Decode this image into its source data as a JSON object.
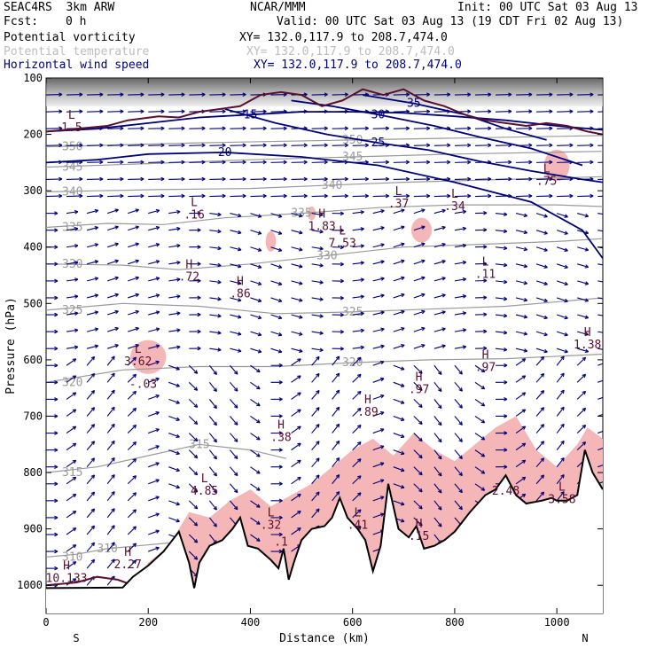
{
  "header": {
    "model": "SEAC4RS  3km ARW",
    "center": "NCAR/MMM",
    "init": "Init: 00 UTC Sat 03 Aug 13",
    "fcst_label": "Fcst:",
    "fcst_value": "0 h",
    "valid": "Valid: 00 UTC Sat 03 Aug 13 (19 CDT Fri 02 Aug 13)"
  },
  "fields": [
    {
      "name": "Potential vorticity",
      "xy": "XY= 132.0,117.9 to 208.7,474.0",
      "color": "#000000"
    },
    {
      "name": "Potential temperature",
      "xy": "XY= 132.0,117.9 to 208.7,474.0",
      "color": "#bdbdbd"
    },
    {
      "name": "Horizontal wind speed",
      "xy": "XY= 132.0,117.9 to 208.7,474.0",
      "color": "#00007a"
    }
  ],
  "colors": {
    "pv_fill": "#f4b6b6",
    "theta": "#9a9a9a",
    "wind": "#00007a",
    "pv_contour": "#5a1030",
    "terrain": "#000000"
  },
  "chart_data": {
    "type": "cross-section",
    "xlabel": "Distance (km)",
    "ylabel": "Pressure (hPa)",
    "xlim": [
      0,
      1090
    ],
    "ylim": [
      1050,
      100
    ],
    "x_ticks": [
      "0",
      "200",
      "400",
      "600",
      "800",
      "1000"
    ],
    "y_ticks": [
      "100",
      "200",
      "300",
      "400",
      "500",
      "600",
      "700",
      "800",
      "900",
      "1000"
    ],
    "x_end_labels": {
      "left": "S",
      "right": "N"
    },
    "terrain": [
      [
        0,
        1005
      ],
      [
        150,
        1004
      ],
      [
        170,
        985
      ],
      [
        200,
        965
      ],
      [
        230,
        940
      ],
      [
        260,
        905
      ],
      [
        280,
        960
      ],
      [
        290,
        1005
      ],
      [
        300,
        960
      ],
      [
        320,
        930
      ],
      [
        345,
        920
      ],
      [
        365,
        900
      ],
      [
        380,
        880
      ],
      [
        395,
        930
      ],
      [
        415,
        935
      ],
      [
        440,
        955
      ],
      [
        455,
        970
      ],
      [
        465,
        935
      ],
      [
        475,
        990
      ],
      [
        485,
        960
      ],
      [
        500,
        920
      ],
      [
        520,
        900
      ],
      [
        545,
        895
      ],
      [
        560,
        880
      ],
      [
        575,
        845
      ],
      [
        590,
        880
      ],
      [
        610,
        900
      ],
      [
        625,
        920
      ],
      [
        640,
        975
      ],
      [
        655,
        930
      ],
      [
        670,
        820
      ],
      [
        690,
        900
      ],
      [
        710,
        915
      ],
      [
        725,
        895
      ],
      [
        740,
        935
      ],
      [
        760,
        930
      ],
      [
        780,
        920
      ],
      [
        800,
        905
      ],
      [
        830,
        870
      ],
      [
        860,
        840
      ],
      [
        880,
        830
      ],
      [
        900,
        805
      ],
      [
        920,
        840
      ],
      [
        940,
        855
      ],
      [
        970,
        850
      ],
      [
        990,
        845
      ],
      [
        1000,
        850
      ],
      [
        1020,
        850
      ],
      [
        1040,
        840
      ],
      [
        1055,
        760
      ],
      [
        1070,
        800
      ],
      [
        1090,
        830
      ]
    ],
    "theta_contours": [
      {
        "value": "310",
        "points": [
          [
            0,
            950
          ],
          [
            60,
            945
          ],
          [
            120,
            935
          ],
          [
            180,
            930
          ],
          [
            240,
            925
          ]
        ]
      },
      {
        "value": "315",
        "points": [
          [
            0,
            800
          ],
          [
            100,
            790
          ],
          [
            200,
            770
          ],
          [
            300,
            750
          ],
          [
            400,
            760
          ],
          [
            470,
            775
          ]
        ]
      },
      {
        "value": "320",
        "points": [
          [
            0,
            640
          ],
          [
            150,
            618
          ],
          [
            300,
            612
          ],
          [
            450,
            612
          ],
          [
            600,
            605
          ],
          [
            750,
            600
          ],
          [
            900,
            598
          ],
          [
            1090,
            590
          ]
        ]
      },
      {
        "value": "325",
        "points": [
          [
            0,
            512
          ],
          [
            150,
            500
          ],
          [
            300,
            505
          ],
          [
            450,
            518
          ],
          [
            600,
            515
          ],
          [
            750,
            510
          ],
          [
            900,
            505
          ],
          [
            1090,
            490
          ]
        ]
      },
      {
        "value": "330",
        "points": [
          [
            0,
            430
          ],
          [
            150,
            432
          ],
          [
            260,
            440
          ],
          [
            400,
            430
          ],
          [
            550,
            415
          ],
          [
            700,
            400
          ],
          [
            850,
            395
          ],
          [
            1000,
            390
          ],
          [
            1090,
            385
          ]
        ]
      },
      {
        "value": "335",
        "points": [
          [
            0,
            365
          ],
          [
            120,
            358
          ],
          [
            230,
            360
          ],
          [
            350,
            348
          ],
          [
            500,
            340
          ],
          [
            650,
            330
          ],
          [
            800,
            325
          ],
          [
            1000,
            325
          ],
          [
            1090,
            328
          ]
        ]
      },
      {
        "value": "340",
        "points": [
          [
            0,
            302
          ],
          [
            100,
            300
          ],
          [
            220,
            298
          ],
          [
            400,
            296
          ],
          [
            560,
            290
          ],
          [
            700,
            285
          ],
          [
            900,
            280
          ],
          [
            1090,
            275
          ]
        ]
      },
      {
        "value": "345",
        "points": [
          [
            0,
            258
          ],
          [
            200,
            252
          ],
          [
            400,
            245
          ],
          [
            600,
            240
          ],
          [
            800,
            235
          ],
          [
            1090,
            230
          ]
        ]
      },
      {
        "value": "350",
        "points": [
          [
            0,
            222
          ],
          [
            300,
            215
          ],
          [
            600,
            210
          ],
          [
            900,
            205
          ],
          [
            1090,
            202
          ]
        ]
      }
    ],
    "wind_speed_contours": [
      {
        "value": "15",
        "points": [
          [
            0,
            195
          ],
          [
            100,
            190
          ],
          [
            200,
            180
          ],
          [
            300,
            170
          ],
          [
            400,
            165
          ],
          [
            500,
            160
          ],
          [
            600,
            160
          ],
          [
            700,
            162
          ],
          [
            800,
            168
          ],
          [
            900,
            175
          ],
          [
            1000,
            185
          ],
          [
            1090,
            192
          ]
        ]
      },
      {
        "value": "20",
        "points": [
          [
            0,
            250
          ],
          [
            100,
            245
          ],
          [
            200,
            235
          ],
          [
            350,
            232
          ],
          [
            500,
            240
          ],
          [
            650,
            255
          ],
          [
            800,
            285
          ],
          [
            950,
            320
          ],
          [
            1050,
            370
          ],
          [
            1090,
            420
          ]
        ]
      },
      {
        "value": "25",
        "points": [
          [
            350,
            155
          ],
          [
            450,
            180
          ],
          [
            550,
            200
          ],
          [
            650,
            215
          ],
          [
            750,
            228
          ],
          [
            850,
            248
          ],
          [
            950,
            265
          ],
          [
            1050,
            280
          ],
          [
            1090,
            285
          ]
        ]
      },
      {
        "value": "30",
        "points": [
          [
            480,
            140
          ],
          [
            560,
            150
          ],
          [
            650,
            165
          ],
          [
            760,
            185
          ],
          [
            850,
            205
          ],
          [
            950,
            225
          ],
          [
            1050,
            255
          ]
        ]
      },
      {
        "value": "35",
        "points": [
          [
            620,
            130
          ],
          [
            720,
            145
          ],
          [
            820,
            165
          ],
          [
            900,
            190
          ],
          [
            980,
            210
          ]
        ]
      }
    ],
    "pv_blobs": [
      {
        "cx": 200,
        "cy": 595,
        "rx": 35,
        "ry": 30
      },
      {
        "cx": 1000,
        "cy": 255,
        "rx": 25,
        "ry": 28
      },
      {
        "cx": 735,
        "cy": 370,
        "rx": 20,
        "ry": 22
      },
      {
        "cx": 440,
        "cy": 390,
        "rx": 10,
        "ry": 18
      },
      {
        "cx": 520,
        "cy": 340,
        "rx": 8,
        "ry": 12
      }
    ],
    "pv_boundary_layer": [
      [
        170,
        1000
      ],
      [
        200,
        960
      ],
      [
        240,
        930
      ],
      [
        280,
        870
      ],
      [
        320,
        880
      ],
      [
        360,
        850
      ],
      [
        400,
        830
      ],
      [
        440,
        860
      ],
      [
        480,
        840
      ],
      [
        520,
        820
      ],
      [
        560,
        790
      ],
      [
        600,
        760
      ],
      [
        640,
        740
      ],
      [
        680,
        770
      ],
      [
        720,
        730
      ],
      [
        760,
        760
      ],
      [
        800,
        780
      ],
      [
        840,
        750
      ],
      [
        880,
        720
      ],
      [
        920,
        700
      ],
      [
        960,
        760
      ],
      [
        1000,
        790
      ],
      [
        1040,
        750
      ],
      [
        1060,
        720
      ],
      [
        1090,
        740
      ]
    ],
    "pv_tropopause": [
      [
        0,
        195
      ],
      [
        60,
        190
      ],
      [
        120,
        185
      ],
      [
        160,
        175
      ],
      [
        220,
        168
      ],
      [
        260,
        170
      ],
      [
        300,
        160
      ],
      [
        340,
        155
      ],
      [
        380,
        150
      ],
      [
        420,
        130
      ],
      [
        460,
        125
      ],
      [
        500,
        130
      ],
      [
        540,
        150
      ],
      [
        580,
        140
      ],
      [
        620,
        120
      ],
      [
        660,
        130
      ],
      [
        700,
        120
      ],
      [
        740,
        140
      ],
      [
        780,
        150
      ],
      [
        820,
        165
      ],
      [
        860,
        175
      ],
      [
        900,
        180
      ],
      [
        940,
        185
      ],
      [
        980,
        180
      ],
      [
        1020,
        185
      ],
      [
        1060,
        195
      ],
      [
        1090,
        200
      ]
    ],
    "pv_surface": [
      [
        0,
        1000
      ],
      [
        60,
        995
      ],
      [
        100,
        985
      ],
      [
        140,
        990
      ],
      [
        170,
        1000
      ]
    ],
    "highs_lows": [
      {
        "letter": "L",
        "label": "1.5",
        "x": 50,
        "y": 185
      },
      {
        "letter": "L",
        "label": ".16",
        "x": 290,
        "y": 340
      },
      {
        "letter": "H",
        "label": "1.83",
        "x": 540,
        "y": 360
      },
      {
        "letter": "L",
        "label": "7.53",
        "x": 580,
        "y": 390
      },
      {
        "letter": "H",
        "label": ".72",
        "x": 280,
        "y": 450
      },
      {
        "letter": "H",
        "label": ".86",
        "x": 380,
        "y": 480
      },
      {
        "letter": "L",
        "label": ".37",
        "x": 690,
        "y": 320
      },
      {
        "letter": "L",
        "label": ".34",
        "x": 800,
        "y": 325
      },
      {
        "letter": "L",
        "label": ".11",
        "x": 860,
        "y": 445
      },
      {
        "letter": "L",
        "label": ".75",
        "x": 980,
        "y": 280
      },
      {
        "letter": "L",
        "label": "3.62",
        "x": 180,
        "y": 600
      },
      {
        "letter": "",
        "label": "-.03",
        "x": 190,
        "y": 640
      },
      {
        "letter": "H",
        "label": ".97",
        "x": 730,
        "y": 650
      },
      {
        "letter": "H",
        "label": ".97",
        "x": 860,
        "y": 610
      },
      {
        "letter": "H",
        "label": ".89",
        "x": 630,
        "y": 690
      },
      {
        "letter": "H",
        "label": ".38",
        "x": 460,
        "y": 735
      },
      {
        "letter": "L",
        "label": "4.85",
        "x": 310,
        "y": 830
      },
      {
        "letter": "H",
        "label": "1.38",
        "x": 1060,
        "y": 570
      },
      {
        "letter": "H",
        "label": "2.27",
        "x": 160,
        "y": 960
      },
      {
        "letter": "H",
        "label": "10.133",
        "x": 40,
        "y": 985
      },
      {
        "letter": "",
        "label": "2.48",
        "x": 900,
        "y": 830
      },
      {
        "letter": "L",
        "label": "3.58",
        "x": 1010,
        "y": 845
      },
      {
        "letter": "L",
        "label": ".41",
        "x": 610,
        "y": 890
      },
      {
        "letter": "H",
        "label": ".15",
        "x": 730,
        "y": 910
      },
      {
        "letter": "",
        "label": ".1",
        "x": 460,
        "y": 920
      },
      {
        "letter": "L",
        "label": ".32",
        "x": 440,
        "y": 890
      }
    ],
    "wind_field_note": "upper levels westerly, weaker winds mid-level, strong updraft arrows over terrain peaks"
  }
}
